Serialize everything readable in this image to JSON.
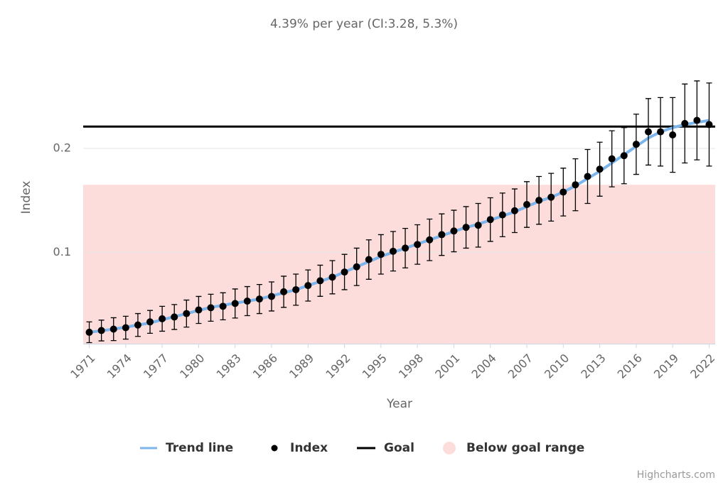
{
  "chart_data": {
    "type": "line",
    "title": "4.39% per year (CI:3.28, 5.3%)",
    "x_label": "Year",
    "y_label": "Index",
    "x": [
      1971,
      1972,
      1973,
      1974,
      1975,
      1976,
      1977,
      1978,
      1979,
      1980,
      1981,
      1982,
      1983,
      1984,
      1985,
      1986,
      1987,
      1988,
      1989,
      1990,
      1991,
      1992,
      1993,
      1994,
      1995,
      1996,
      1997,
      1998,
      1999,
      2000,
      2001,
      2002,
      2003,
      2004,
      2005,
      2006,
      2007,
      2008,
      2009,
      2010,
      2011,
      2012,
      2013,
      2014,
      2015,
      2016,
      2017,
      2018,
      2019,
      2020,
      2021,
      2022
    ],
    "xlim": [
      1970.5,
      2022.5
    ],
    "xticks": [
      1971,
      1974,
      1977,
      1980,
      1983,
      1986,
      1989,
      1992,
      1995,
      1998,
      2001,
      2004,
      2007,
      2010,
      2013,
      2016,
      2019,
      2022
    ],
    "ylim": [
      0.012,
      0.28
    ],
    "yticks": [
      0.1,
      0.2
    ],
    "grid": true,
    "series": [
      {
        "name": "Trend line",
        "color": "#7cb5ec",
        "values": [
          0.023,
          0.0245,
          0.026,
          0.028,
          0.03,
          0.032,
          0.035,
          0.038,
          0.041,
          0.044,
          0.047,
          0.049,
          0.051,
          0.053,
          0.055,
          0.058,
          0.061,
          0.064,
          0.068,
          0.072,
          0.076,
          0.081,
          0.086,
          0.091,
          0.096,
          0.1,
          0.104,
          0.108,
          0.112,
          0.116,
          0.12,
          0.124,
          0.127,
          0.131,
          0.135,
          0.139,
          0.144,
          0.149,
          0.153,
          0.158,
          0.164,
          0.171,
          0.178,
          0.186,
          0.194,
          0.202,
          0.21,
          0.216,
          0.22,
          0.223,
          0.225,
          0.227
        ]
      },
      {
        "name": "Index",
        "color": "#000000",
        "values": [
          0.023,
          0.0247,
          0.026,
          0.0274,
          0.03,
          0.033,
          0.036,
          0.0377,
          0.041,
          0.0445,
          0.0466,
          0.048,
          0.0507,
          0.053,
          0.055,
          0.0575,
          0.062,
          0.064,
          0.068,
          0.0726,
          0.076,
          0.081,
          0.086,
          0.093,
          0.098,
          0.101,
          0.104,
          0.1075,
          0.112,
          0.117,
          0.1205,
          0.124,
          0.126,
          0.1315,
          0.136,
          0.14,
          0.146,
          0.15,
          0.153,
          0.158,
          0.165,
          0.173,
          0.18,
          0.19,
          0.193,
          0.204,
          0.216,
          0.216,
          0.213,
          0.224,
          0.227,
          0.223
        ],
        "errors": [
          0.01,
          0.01,
          0.011,
          0.011,
          0.011,
          0.011,
          0.012,
          0.012,
          0.013,
          0.013,
          0.013,
          0.013,
          0.014,
          0.014,
          0.014,
          0.014,
          0.015,
          0.015,
          0.015,
          0.015,
          0.016,
          0.017,
          0.018,
          0.019,
          0.019,
          0.019,
          0.019,
          0.019,
          0.02,
          0.02,
          0.02,
          0.02,
          0.021,
          0.021,
          0.021,
          0.021,
          0.022,
          0.023,
          0.023,
          0.023,
          0.025,
          0.026,
          0.026,
          0.027,
          0.027,
          0.029,
          0.032,
          0.033,
          0.036,
          0.038,
          0.038,
          0.04
        ]
      },
      {
        "name": "Goal",
        "color": "#000000",
        "value": 0.221
      },
      {
        "name": "Below goal range",
        "color": "#fddddb",
        "to": 0.165
      }
    ],
    "credits": "Highcharts.com"
  }
}
